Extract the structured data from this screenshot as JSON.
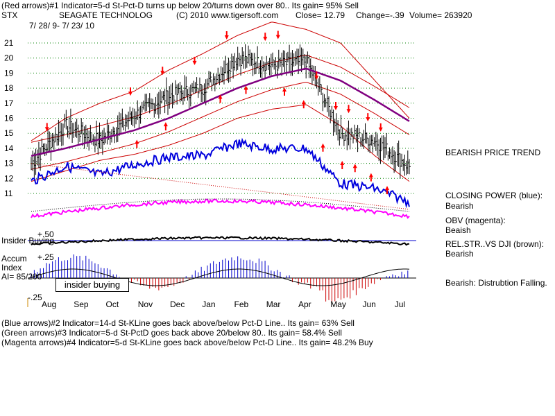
{
  "header": {
    "line1": "(Red arrows)#1 Indicator=5-d St-Pct-D turns up below 20/turns down over 80.. Its gain= 95% Sell",
    "ticker": "STX",
    "company": "SEAGATE TECHNOLOG",
    "copyright": "(C) 2010 www.tigersoft.com",
    "close": "Close=  12.79",
    "change": "Change=-.39",
    "volume": "Volume=  263920",
    "date_range": "7/ 28/ 9-  7/ 23/ 10"
  },
  "panel_labels": {
    "insider_buying": "Insider Buying",
    "accum": "Accum",
    "index": "Index",
    "ai": "AI= 85/200",
    "insider_box": "insider buying",
    "plus50": "+.50",
    "plus25": "+.25",
    "minus25": "-.25"
  },
  "side_labels": {
    "trend": "BEARISH PRICE TREND",
    "cp1": "CLOSING POWER (blue):",
    "cp2": "Bearish",
    "obv1": "OBV (magenta):",
    "obv2": "Beaish",
    "rel1": "REL.STR..VS DJI (brown):",
    "rel2": "Bearish",
    "dist": "Bearish: Distrubtion Falling."
  },
  "footer": {
    "line1": "(Blue arrows)#2 Indicator=14-d St-KLine goes back above/below Pct-D Line.. Its gain= 63% Sell",
    "line2": "(Green arrows)#3 Indicator=5-d St-PctD goes back above 20/below 80.. Its gain= 58.4% Sell",
    "line3": "(Magenta arrows)#4 Indicator=5-d St-KLine goes back above/below Pct-D Line.. Its gain= 48.2% Buy"
  },
  "colors": {
    "price": "#000000",
    "bands": "#cc0000",
    "ma": "#800080",
    "closing_power": "#0000dd",
    "obv": "#ff00ff",
    "rel_strength": "#000000",
    "insider_line": "#0000cc",
    "accum_pos": "#0000cc",
    "accum_neg": "#cc0000",
    "grid": "#008000",
    "arrows": "#ff0000"
  },
  "chart_data": {
    "type": "line",
    "ylim": [
      10,
      23
    ],
    "y_ticks": [
      11,
      12,
      13,
      14,
      15,
      16,
      17,
      18,
      19,
      20,
      21
    ],
    "x_months": [
      "Aug",
      "Sep",
      "Oct",
      "Nov",
      "Dec",
      "Jan",
      "Feb",
      "Mar",
      "Apr",
      "May",
      "Jun",
      "Jul"
    ],
    "price_monthly": [
      {
        "month": "Aug",
        "close": 13.0
      },
      {
        "month": "Sep",
        "close": 15.5
      },
      {
        "month": "Oct",
        "close": 14.5
      },
      {
        "month": "Nov",
        "close": 16.2
      },
      {
        "month": "Dec",
        "close": 17.5
      },
      {
        "month": "Jan",
        "close": 18.0
      },
      {
        "month": "Feb",
        "close": 20.0
      },
      {
        "month": "Mar",
        "close": 19.5
      },
      {
        "month": "Apr",
        "close": 19.8
      },
      {
        "month": "May",
        "close": 15.0
      },
      {
        "month": "Jun",
        "close": 14.5
      },
      {
        "month": "Jul",
        "close": 12.79
      }
    ],
    "ma_monthly": [
      13.5,
      14.0,
      14.6,
      15.2,
      16.0,
      17.0,
      18.0,
      18.8,
      19.3,
      18.5,
      17.2,
      15.8
    ],
    "upper_band_monthly": [
      14.5,
      16.0,
      17.0,
      17.8,
      19.2,
      20.3,
      21.5,
      22.4,
      21.9,
      21.0,
      18.5,
      16.0
    ],
    "lower_band_monthly": [
      11.8,
      12.5,
      13.2,
      13.6,
      14.2,
      15.0,
      16.0,
      16.6,
      16.9,
      15.5,
      13.5,
      11.8
    ],
    "sell_arrow_months": [
      0.2,
      2.8,
      3.8,
      4.8,
      5.8,
      7.0,
      7.4,
      8.6,
      9.2,
      9.6,
      10.2,
      10.6
    ],
    "buy_arrow_months": [
      3.0,
      3.9,
      5.6,
      6.4,
      7.6,
      8.2,
      8.8,
      9.4,
      9.8,
      10.3,
      10.8
    ]
  }
}
